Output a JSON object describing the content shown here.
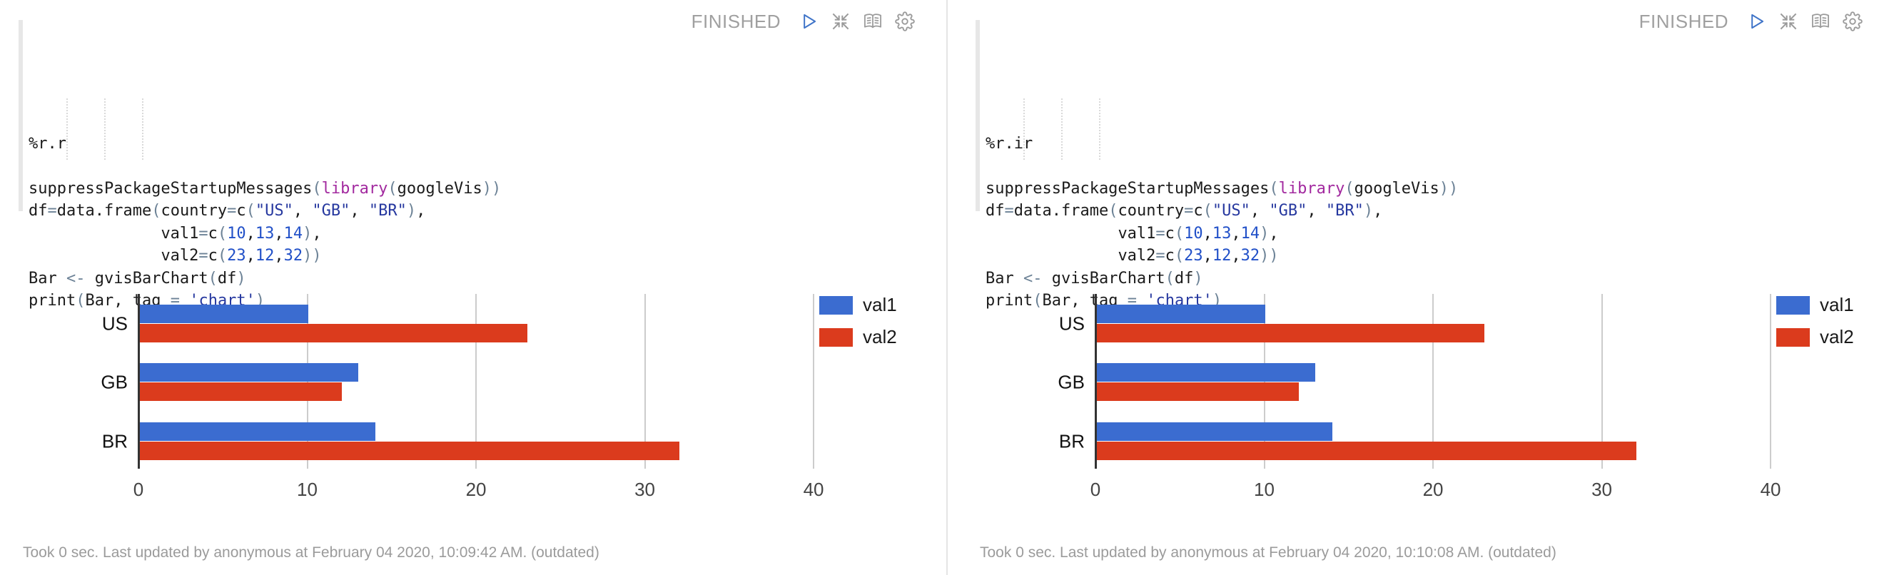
{
  "colors": {
    "series_blue": "#3b6cd0",
    "series_red": "#db3b1d",
    "play_icon_blue": "#3f74c8",
    "icon_gray": "#9a9a9a",
    "status_gray": "#a0a0a0",
    "gridline": "#cccccc",
    "axis": "#333333"
  },
  "panels": [
    {
      "id": "paragraph-left",
      "status_label": "FINISHED",
      "controls": {
        "icons": [
          "play-icon",
          "shrink-icon",
          "book-icon",
          "gear-icon"
        ]
      },
      "code_lines": [
        [
          [
            "%r.r",
            "p"
          ]
        ],
        [],
        [
          [
            "suppressPackageStartupMessages",
            "p"
          ],
          [
            "(",
            "b"
          ],
          [
            "library",
            "k"
          ],
          [
            "(",
            "b"
          ],
          [
            "googleVis",
            "p"
          ],
          [
            "))",
            "b"
          ]
        ],
        [
          [
            "df",
            "p"
          ],
          [
            "=",
            "o"
          ],
          [
            "data.frame",
            "p"
          ],
          [
            "(",
            "b"
          ],
          [
            "country",
            "p"
          ],
          [
            "=",
            "o"
          ],
          [
            "c",
            "p"
          ],
          [
            "(",
            "b"
          ],
          [
            "\"US\"",
            "s"
          ],
          [
            ", ",
            "p"
          ],
          [
            "\"GB\"",
            "s"
          ],
          [
            ", ",
            "p"
          ],
          [
            "\"BR\"",
            "s"
          ],
          [
            ")",
            "b"
          ],
          [
            ",",
            "p"
          ]
        ],
        [
          [
            "              ",
            "p"
          ],
          [
            "val1",
            "p"
          ],
          [
            "=",
            "o"
          ],
          [
            "c",
            "p"
          ],
          [
            "(",
            "b"
          ],
          [
            "10",
            "n"
          ],
          [
            ",",
            "p"
          ],
          [
            "13",
            "n"
          ],
          [
            ",",
            "p"
          ],
          [
            "14",
            "n"
          ],
          [
            ")",
            "b"
          ],
          [
            ",",
            "p"
          ]
        ],
        [
          [
            "              ",
            "p"
          ],
          [
            "val2",
            "p"
          ],
          [
            "=",
            "o"
          ],
          [
            "c",
            "p"
          ],
          [
            "(",
            "b"
          ],
          [
            "23",
            "n"
          ],
          [
            ",",
            "p"
          ],
          [
            "12",
            "n"
          ],
          [
            ",",
            "p"
          ],
          [
            "32",
            "n"
          ],
          [
            "))",
            "b"
          ]
        ],
        [
          [
            "Bar ",
            "p"
          ],
          [
            "<-",
            "o"
          ],
          [
            " gvisBarChart",
            "p"
          ],
          [
            "(",
            "b"
          ],
          [
            "df",
            "p"
          ],
          [
            ")",
            "b"
          ]
        ],
        [
          [
            "print",
            "p"
          ],
          [
            "(",
            "b"
          ],
          [
            "Bar, tag ",
            "p"
          ],
          [
            "=",
            "o"
          ],
          [
            " ",
            "p"
          ],
          [
            "'chart'",
            "s"
          ],
          [
            ")",
            "b"
          ]
        ]
      ],
      "footer": "Took 0 sec. Last updated by anonymous at February 04 2020, 10:09:42 AM. (outdated)"
    },
    {
      "id": "paragraph-right",
      "status_label": "FINISHED",
      "controls": {
        "icons": [
          "play-icon",
          "shrink-icon",
          "book-icon",
          "gear-icon"
        ]
      },
      "code_lines": [
        [
          [
            "%r.ir",
            "p"
          ]
        ],
        [],
        [
          [
            "suppressPackageStartupMessages",
            "p"
          ],
          [
            "(",
            "b"
          ],
          [
            "library",
            "k"
          ],
          [
            "(",
            "b"
          ],
          [
            "googleVis",
            "p"
          ],
          [
            "))",
            "b"
          ]
        ],
        [
          [
            "df",
            "p"
          ],
          [
            "=",
            "o"
          ],
          [
            "data.frame",
            "p"
          ],
          [
            "(",
            "b"
          ],
          [
            "country",
            "p"
          ],
          [
            "=",
            "o"
          ],
          [
            "c",
            "p"
          ],
          [
            "(",
            "b"
          ],
          [
            "\"US\"",
            "s"
          ],
          [
            ", ",
            "p"
          ],
          [
            "\"GB\"",
            "s"
          ],
          [
            ", ",
            "p"
          ],
          [
            "\"BR\"",
            "s"
          ],
          [
            ")",
            "b"
          ],
          [
            ",",
            "p"
          ]
        ],
        [
          [
            "              ",
            "p"
          ],
          [
            "val1",
            "p"
          ],
          [
            "=",
            "o"
          ],
          [
            "c",
            "p"
          ],
          [
            "(",
            "b"
          ],
          [
            "10",
            "n"
          ],
          [
            ",",
            "p"
          ],
          [
            "13",
            "n"
          ],
          [
            ",",
            "p"
          ],
          [
            "14",
            "n"
          ],
          [
            ")",
            "b"
          ],
          [
            ",",
            "p"
          ]
        ],
        [
          [
            "              ",
            "p"
          ],
          [
            "val2",
            "p"
          ],
          [
            "=",
            "o"
          ],
          [
            "c",
            "p"
          ],
          [
            "(",
            "b"
          ],
          [
            "23",
            "n"
          ],
          [
            ",",
            "p"
          ],
          [
            "12",
            "n"
          ],
          [
            ",",
            "p"
          ],
          [
            "32",
            "n"
          ],
          [
            "))",
            "b"
          ]
        ],
        [
          [
            "Bar ",
            "p"
          ],
          [
            "<-",
            "o"
          ],
          [
            " gvisBarChart",
            "p"
          ],
          [
            "(",
            "b"
          ],
          [
            "df",
            "p"
          ],
          [
            ")",
            "b"
          ]
        ],
        [
          [
            "print",
            "p"
          ],
          [
            "(",
            "b"
          ],
          [
            "Bar, tag ",
            "p"
          ],
          [
            "=",
            "o"
          ],
          [
            " ",
            "p"
          ],
          [
            "'chart'",
            "s"
          ],
          [
            ")",
            "b"
          ]
        ]
      ],
      "footer": "Took 0 sec. Last updated by anonymous at February 04 2020, 10:10:08 AM. (outdated)"
    }
  ],
  "chart_data": [
    {
      "type": "bar",
      "orientation": "horizontal",
      "title": "",
      "categories": [
        "US",
        "GB",
        "BR"
      ],
      "series": [
        {
          "name": "val1",
          "color": "#3b6cd0",
          "values": [
            10,
            13,
            14
          ]
        },
        {
          "name": "val2",
          "color": "#db3b1d",
          "values": [
            23,
            12,
            32
          ]
        }
      ],
      "xticks": [
        0,
        10,
        20,
        30,
        40
      ],
      "xlim": [
        0,
        40.42
      ],
      "grid": true,
      "legend_position": "right-top"
    },
    {
      "type": "bar",
      "orientation": "horizontal",
      "title": "",
      "categories": [
        "US",
        "GB",
        "BR"
      ],
      "series": [
        {
          "name": "val1",
          "color": "#3b6cd0",
          "values": [
            10,
            13,
            14
          ]
        },
        {
          "name": "val2",
          "color": "#db3b1d",
          "values": [
            23,
            12,
            32
          ]
        }
      ],
      "xticks": [
        0,
        10,
        20,
        30,
        40
      ],
      "xlim": [
        0,
        40.42
      ],
      "grid": true,
      "legend_position": "right-top"
    }
  ]
}
